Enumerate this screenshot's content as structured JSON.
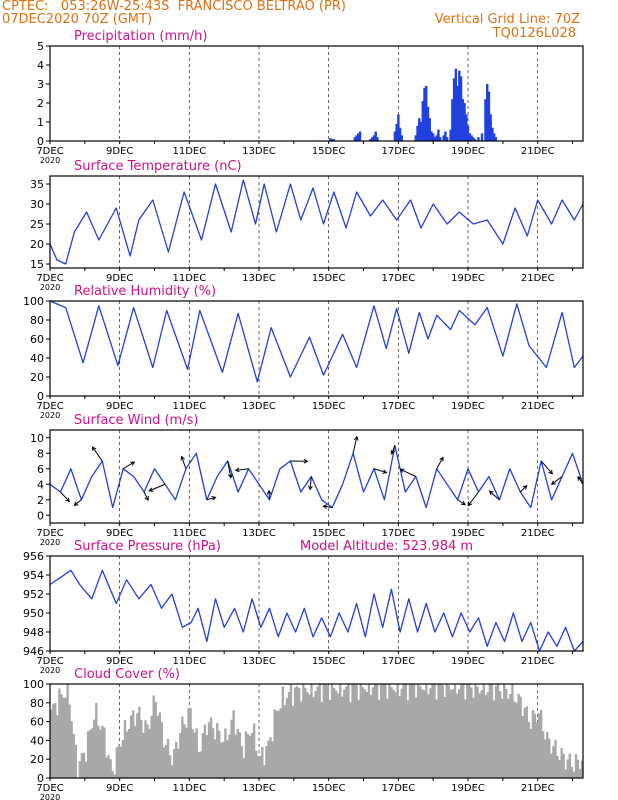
{
  "header": {
    "source_line": "CPTEC:   053:26W-25:43S  FRANCISCO BELTRAO (PR)",
    "date_line": "07DEC2020 70Z (GMT)",
    "grid_line": "Vertical Grid Line: 70Z",
    "code": "TQ0126L028"
  },
  "x_tick_labels": [
    "7DEC",
    "9DEC",
    "11DEC",
    "13DEC",
    "15DEC",
    "17DEC",
    "19DEC",
    "21DEC"
  ],
  "x_year_label": "2020",
  "colors": {
    "header": "#e07010",
    "panel_title": "#d0108a",
    "line": "#2040e0",
    "cloud": "#a8a8a8",
    "grid": "#000000"
  },
  "chart_data": [
    {
      "type": "bar",
      "title": "Precipitation (mm/h)",
      "ylim": [
        0,
        5
      ],
      "yticks": [
        0,
        1,
        2,
        3,
        4,
        5
      ],
      "x_range": [
        7,
        22.3
      ],
      "x": [
        15.05,
        15.1,
        15.15,
        15.75,
        15.8,
        15.85,
        15.9,
        16.2,
        16.25,
        16.3,
        16.35,
        16.4,
        16.9,
        16.95,
        17.0,
        17.05,
        17.1,
        17.5,
        17.55,
        17.6,
        17.65,
        17.7,
        17.75,
        17.8,
        17.85,
        17.9,
        17.95,
        18.0,
        18.05,
        18.1,
        18.15,
        18.2,
        18.3,
        18.35,
        18.4,
        18.5,
        18.55,
        18.6,
        18.65,
        18.7,
        18.75,
        18.8,
        18.85,
        18.9,
        18.95,
        19.0,
        19.05,
        19.1,
        19.15,
        19.2,
        19.3,
        19.4,
        19.5,
        19.55,
        19.6,
        19.65,
        19.7,
        19.75,
        19.8
      ],
      "values": [
        0.15,
        0.1,
        0.1,
        0.2,
        0.3,
        0.4,
        0.5,
        0.1,
        0.2,
        0.3,
        0.5,
        0.2,
        0.5,
        0.9,
        1.4,
        0.7,
        0.3,
        0.3,
        0.8,
        1.2,
        1.0,
        2.1,
        2.8,
        2.9,
        1.8,
        1.2,
        0.5,
        0.4,
        0.2,
        0.3,
        0.6,
        0.2,
        0.3,
        0.5,
        0.2,
        0.6,
        2.2,
        3.3,
        3.8,
        2.9,
        3.7,
        3.4,
        2.2,
        2.0,
        1.4,
        0.8,
        0.4,
        0.3,
        0.2,
        0.1,
        0.2,
        0.4,
        2.2,
        3.0,
        2.6,
        1.4,
        0.7,
        0.4,
        0.2
      ]
    },
    {
      "type": "line",
      "title": "Surface Temperature (nC)",
      "ylim": [
        14,
        37
      ],
      "yticks": [
        15,
        20,
        25,
        30,
        35
      ],
      "x_range": [
        7,
        22.3
      ],
      "x": [
        7.0,
        7.2,
        7.45,
        7.7,
        8.05,
        8.4,
        8.9,
        9.3,
        9.55,
        9.95,
        10.4,
        10.85,
        11.35,
        11.75,
        12.2,
        12.55,
        12.9,
        13.15,
        13.5,
        13.9,
        14.2,
        14.55,
        14.85,
        15.15,
        15.5,
        15.8,
        16.2,
        16.55,
        16.95,
        17.35,
        17.65,
        18.0,
        18.4,
        18.75,
        19.15,
        19.55,
        20.0,
        20.35,
        20.7,
        21.0,
        21.4,
        21.7,
        22.05,
        22.3
      ],
      "y": [
        20,
        16,
        15,
        23,
        28,
        21,
        29,
        17,
        26,
        31,
        18,
        33,
        21,
        35,
        23,
        36,
        25,
        35,
        23,
        35,
        26,
        34,
        25,
        33,
        24,
        33,
        27,
        31,
        26,
        31,
        24,
        30,
        25,
        28,
        25,
        26,
        20,
        29,
        22,
        31,
        25,
        31,
        26,
        30
      ]
    },
    {
      "type": "line",
      "title": "Relative Humidity (%)",
      "ylim": [
        0,
        100
      ],
      "yticks": [
        0,
        20,
        40,
        60,
        80,
        100
      ],
      "x_range": [
        7,
        22.3
      ],
      "x": [
        7.0,
        7.45,
        7.95,
        8.4,
        8.95,
        9.4,
        9.95,
        10.35,
        10.95,
        11.3,
        11.95,
        12.4,
        12.95,
        13.35,
        13.9,
        14.45,
        14.85,
        15.4,
        15.8,
        16.3,
        16.65,
        16.95,
        17.3,
        17.6,
        17.85,
        18.1,
        18.5,
        18.75,
        19.2,
        19.55,
        20.0,
        20.4,
        20.75,
        21.25,
        21.7,
        22.05,
        22.3
      ],
      "y": [
        100,
        93,
        35,
        95,
        32,
        93,
        30,
        90,
        28,
        90,
        25,
        87,
        15,
        72,
        20,
        62,
        22,
        65,
        30,
        95,
        50,
        92,
        45,
        88,
        60,
        85,
        70,
        90,
        75,
        93,
        42,
        97,
        53,
        30,
        88,
        30,
        42
      ]
    },
    {
      "type": "line",
      "title": "Surface Wind (m/s)",
      "ylim": [
        -1,
        11
      ],
      "yticks": [
        0,
        2,
        4,
        6,
        8,
        10
      ],
      "x_range": [
        7,
        22.3
      ],
      "x": [
        7.0,
        7.3,
        7.6,
        7.9,
        8.2,
        8.5,
        8.8,
        9.1,
        9.4,
        9.7,
        10.0,
        10.3,
        10.6,
        10.9,
        11.2,
        11.5,
        11.8,
        12.1,
        12.4,
        12.7,
        13.0,
        13.3,
        13.6,
        13.9,
        14.2,
        14.5,
        14.8,
        15.1,
        15.4,
        15.7,
        16.0,
        16.3,
        16.6,
        16.9,
        17.2,
        17.5,
        17.8,
        18.1,
        18.4,
        18.7,
        19.0,
        19.3,
        19.6,
        19.9,
        20.2,
        20.5,
        20.8,
        21.1,
        21.4,
        21.7,
        22.0,
        22.3
      ],
      "y": [
        4,
        3,
        6,
        2,
        5,
        7,
        1,
        6,
        5,
        3,
        6,
        4,
        2,
        6,
        8,
        2,
        5,
        7,
        3,
        6,
        4,
        2,
        6,
        7,
        3,
        5,
        2,
        1,
        4,
        8,
        3,
        6,
        2,
        9,
        3,
        5,
        1,
        6,
        4,
        2,
        6,
        3,
        5,
        2,
        6,
        3,
        1,
        7,
        2,
        5,
        8,
        4
      ]
    },
    {
      "type": "line",
      "title": "Surface Pressure (hPa)",
      "annotation": "Model Altitude: 523.984 m",
      "ylim": [
        946,
        956
      ],
      "yticks": [
        946,
        948,
        950,
        952,
        954,
        956
      ],
      "x_range": [
        7,
        22.3
      ],
      "x": [
        7.0,
        7.2,
        7.6,
        7.85,
        8.2,
        8.5,
        8.9,
        9.2,
        9.55,
        9.9,
        10.2,
        10.5,
        10.8,
        11.05,
        11.25,
        11.5,
        11.75,
        12.0,
        12.3,
        12.55,
        12.8,
        13.05,
        13.3,
        13.55,
        13.8,
        14.05,
        14.3,
        14.55,
        14.8,
        15.05,
        15.3,
        15.55,
        15.8,
        16.05,
        16.3,
        16.55,
        16.8,
        17.05,
        17.3,
        17.55,
        17.8,
        18.05,
        18.3,
        18.55,
        18.8,
        19.05,
        19.3,
        19.55,
        19.8,
        20.05,
        20.3,
        20.55,
        20.8,
        21.05,
        21.3,
        21.55,
        21.8,
        22.05,
        22.3
      ],
      "y": [
        953,
        953.5,
        954.5,
        953,
        951.5,
        954.5,
        951,
        953.5,
        951.5,
        953,
        950.5,
        952,
        948.5,
        949,
        950.5,
        947,
        951.5,
        948.5,
        950.5,
        948,
        951.5,
        948.5,
        950.5,
        947.5,
        950,
        948,
        950.5,
        947.5,
        949.5,
        947.5,
        950,
        948,
        951,
        947.5,
        952,
        948.5,
        952.5,
        948,
        951.5,
        948,
        951,
        948,
        950,
        947.5,
        950,
        948,
        949.5,
        946.5,
        949,
        947,
        950,
        947,
        949,
        946,
        948,
        946.5,
        948.5,
        946,
        947
      ]
    },
    {
      "type": "area",
      "title": "Cloud Cover (%)",
      "ylim": [
        0,
        100
      ],
      "yticks": [
        0,
        20,
        40,
        60,
        80,
        100
      ],
      "x_range": [
        7,
        22.3
      ],
      "x": [
        7.0,
        7.3,
        7.5,
        7.75,
        8.0,
        8.25,
        8.5,
        8.75,
        9.0,
        9.25,
        9.5,
        9.75,
        10.0,
        10.25,
        10.5,
        10.75,
        11.0,
        11.25,
        11.5,
        11.75,
        12.0,
        12.25,
        12.5,
        12.75,
        13.0,
        13.25,
        13.5,
        13.75,
        14.0,
        14.25,
        14.5,
        15.0,
        15.5,
        16.0,
        16.5,
        17.0,
        17.5,
        18.0,
        18.5,
        19.0,
        19.5,
        20.0,
        20.25,
        20.5,
        20.75,
        21.0,
        21.25,
        21.5,
        21.75,
        22.0,
        22.3
      ],
      "y": [
        70,
        88,
        95,
        10,
        30,
        70,
        50,
        5,
        40,
        60,
        70,
        50,
        85,
        40,
        20,
        55,
        70,
        30,
        60,
        50,
        40,
        65,
        30,
        55,
        20,
        35,
        75,
        88,
        92,
        96,
        95,
        97,
        96,
        98,
        99,
        97,
        99,
        98,
        99,
        97,
        96,
        94,
        90,
        80,
        60,
        70,
        40,
        30,
        20,
        15,
        20
      ]
    }
  ]
}
